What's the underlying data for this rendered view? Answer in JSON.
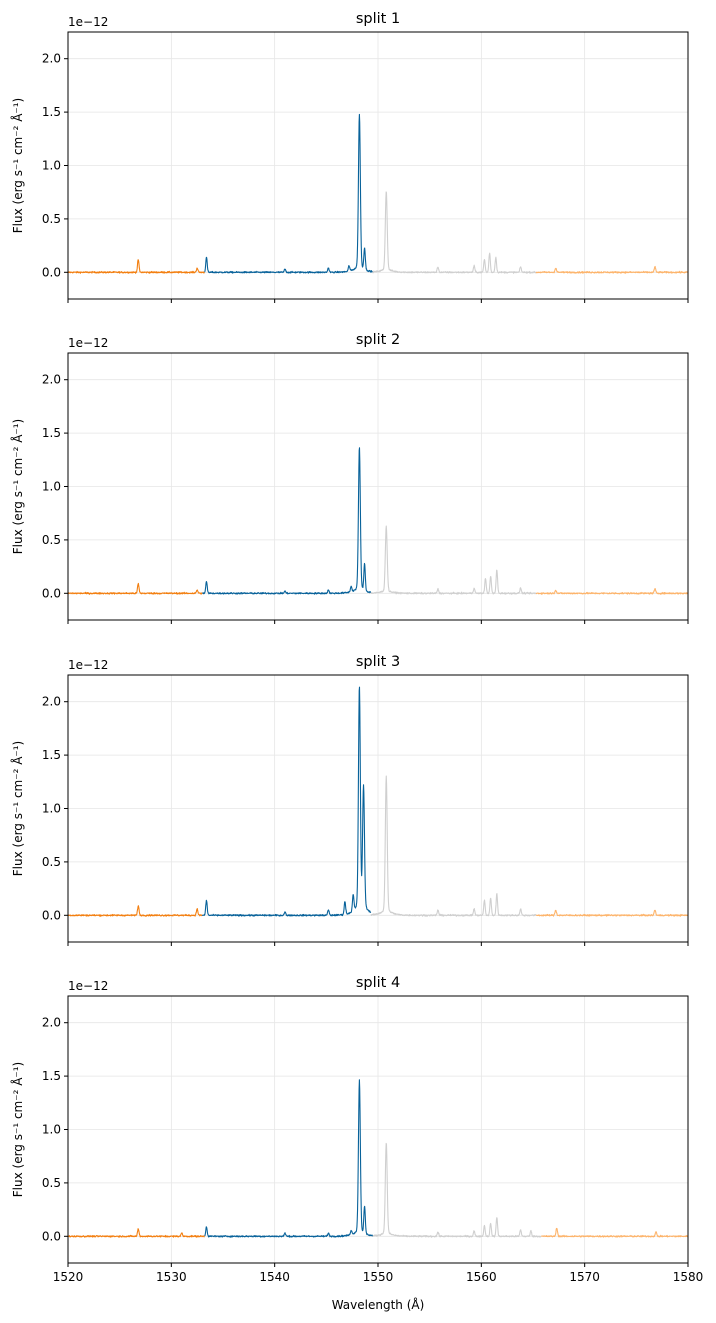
{
  "chart_data": {
    "type": "line",
    "xlabel": "Wavelength (Å)",
    "ylabel": "Flux (erg s⁻¹ cm⁻² Å⁻¹)",
    "y_offset_label": "1e−12",
    "xlim": [
      1520,
      1580
    ],
    "ylim": [
      -0.25,
      2.25
    ],
    "x_ticks": [
      1520,
      1530,
      1540,
      1550,
      1560,
      1570,
      1580
    ],
    "y_ticks": [
      0.0,
      0.5,
      1.0,
      1.5,
      2.0
    ],
    "y_tick_labels": [
      "0.0",
      "0.5",
      "1.0",
      "1.5",
      "2.0"
    ],
    "grid": true,
    "segment_colors": {
      "left_continuum": "#f37f10",
      "blue_line": "#08629a",
      "red_line": "#cfcfcf",
      "right_continuum": "#fdb46b"
    },
    "panels": [
      {
        "title": "split 1",
        "segments": [
          {
            "region": "left_continuum",
            "x_range": [
              1520,
              1533.2
            ],
            "features": [
              [
                1526.8,
                0.12
              ],
              [
                1532.5,
                0.04
              ]
            ]
          },
          {
            "region": "blue_line",
            "x_range": [
              1533.2,
              1549.5
            ],
            "features": [
              [
                1533.4,
                0.14
              ],
              [
                1541.0,
                0.03
              ],
              [
                1545.2,
                0.04
              ],
              [
                1547.2,
                0.05
              ],
              [
                1548.2,
                1.4
              ],
              [
                1548.7,
                0.2
              ]
            ]
          },
          {
            "region": "red_line",
            "x_range": [
              1549.5,
              1565.3
            ],
            "features": [
              [
                1550.8,
                0.72
              ],
              [
                1555.8,
                0.05
              ],
              [
                1559.3,
                0.06
              ],
              [
                1560.3,
                0.12
              ],
              [
                1560.8,
                0.18
              ],
              [
                1561.4,
                0.14
              ],
              [
                1563.8,
                0.05
              ]
            ]
          },
          {
            "region": "right_continuum",
            "x_range": [
              1565.3,
              1580
            ],
            "features": [
              [
                1567.2,
                0.04
              ],
              [
                1576.8,
                0.05
              ]
            ]
          }
        ]
      },
      {
        "title": "split 2",
        "segments": [
          {
            "region": "left_continuum",
            "x_range": [
              1520,
              1533.0
            ],
            "features": [
              [
                1526.8,
                0.09
              ],
              [
                1532.5,
                0.03
              ]
            ]
          },
          {
            "region": "blue_line",
            "x_range": [
              1533.0,
              1549.3
            ],
            "features": [
              [
                1533.4,
                0.11
              ],
              [
                1541.0,
                0.02
              ],
              [
                1545.2,
                0.03
              ],
              [
                1547.4,
                0.05
              ],
              [
                1548.2,
                1.29
              ],
              [
                1548.7,
                0.25
              ]
            ]
          },
          {
            "region": "red_line",
            "x_range": [
              1549.3,
              1565.3
            ],
            "features": [
              [
                1550.8,
                0.59
              ],
              [
                1555.8,
                0.04
              ],
              [
                1559.3,
                0.05
              ],
              [
                1560.4,
                0.14
              ],
              [
                1560.9,
                0.16
              ],
              [
                1561.5,
                0.22
              ],
              [
                1563.8,
                0.05
              ]
            ]
          },
          {
            "region": "right_continuum",
            "x_range": [
              1565.3,
              1580
            ],
            "features": [
              [
                1567.2,
                0.03
              ],
              [
                1576.8,
                0.04
              ]
            ]
          }
        ]
      },
      {
        "title": "split 3",
        "segments": [
          {
            "region": "left_continuum",
            "x_range": [
              1520,
              1533.0
            ],
            "features": [
              [
                1526.8,
                0.09
              ],
              [
                1532.5,
                0.06
              ]
            ]
          },
          {
            "region": "blue_line",
            "x_range": [
              1533.0,
              1549.3
            ],
            "features": [
              [
                1533.4,
                0.14
              ],
              [
                1541.0,
                0.03
              ],
              [
                1545.2,
                0.05
              ],
              [
                1546.8,
                0.12
              ],
              [
                1547.6,
                0.15
              ],
              [
                1548.2,
                2.0
              ],
              [
                1548.6,
                1.1
              ]
            ]
          },
          {
            "region": "red_line",
            "x_range": [
              1549.3,
              1565.3
            ],
            "features": [
              [
                1550.8,
                1.23
              ],
              [
                1555.8,
                0.05
              ],
              [
                1559.3,
                0.06
              ],
              [
                1560.3,
                0.14
              ],
              [
                1560.9,
                0.16
              ],
              [
                1561.5,
                0.2
              ],
              [
                1563.8,
                0.06
              ]
            ]
          },
          {
            "region": "right_continuum",
            "x_range": [
              1565.3,
              1580
            ],
            "features": [
              [
                1567.2,
                0.05
              ],
              [
                1576.8,
                0.05
              ]
            ]
          }
        ]
      },
      {
        "title": "split 4",
        "segments": [
          {
            "region": "left_continuum",
            "x_range": [
              1520,
              1533.2
            ],
            "features": [
              [
                1526.8,
                0.07
              ],
              [
                1531.0,
                0.03
              ]
            ]
          },
          {
            "region": "blue_line",
            "x_range": [
              1533.2,
              1549.5
            ],
            "features": [
              [
                1533.4,
                0.09
              ],
              [
                1541.0,
                0.03
              ],
              [
                1545.2,
                0.03
              ],
              [
                1547.4,
                0.04
              ],
              [
                1548.2,
                1.38
              ],
              [
                1548.7,
                0.25
              ]
            ]
          },
          {
            "region": "red_line",
            "x_range": [
              1549.5,
              1565.8
            ],
            "features": [
              [
                1550.8,
                0.83
              ],
              [
                1555.8,
                0.04
              ],
              [
                1559.3,
                0.05
              ],
              [
                1560.3,
                0.1
              ],
              [
                1560.9,
                0.12
              ],
              [
                1561.5,
                0.18
              ],
              [
                1563.8,
                0.06
              ],
              [
                1564.8,
                0.05
              ]
            ]
          },
          {
            "region": "right_continuum",
            "x_range": [
              1565.8,
              1580
            ],
            "features": [
              [
                1567.3,
                0.08
              ],
              [
                1576.9,
                0.04
              ]
            ]
          }
        ]
      }
    ]
  }
}
